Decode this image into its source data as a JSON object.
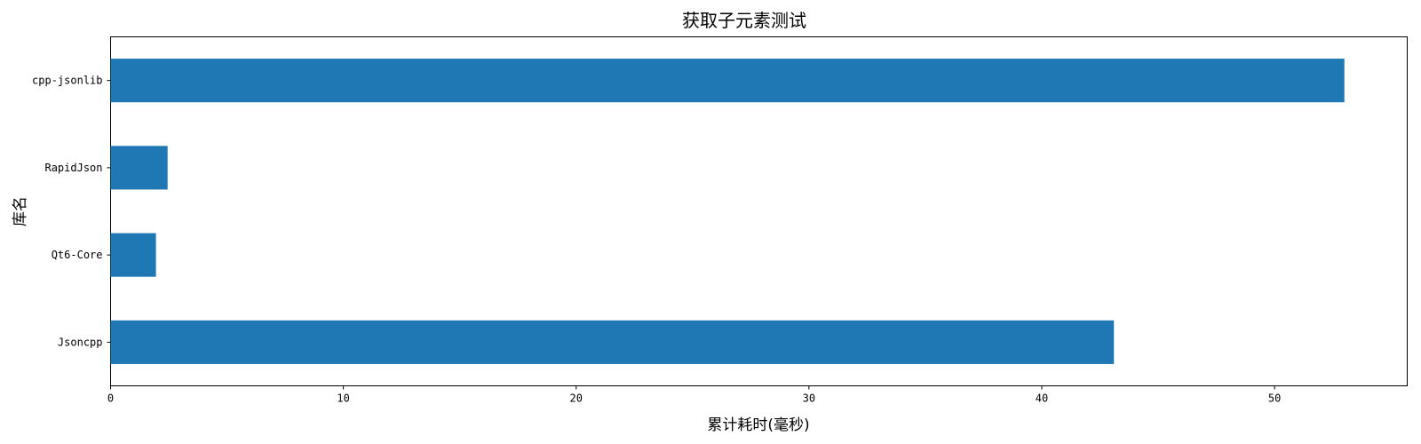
{
  "chart_data": {
    "type": "bar",
    "orientation": "horizontal",
    "title": "获取子元素测试",
    "xlabel": "累计耗时(毫秒)",
    "ylabel": "库名",
    "categories": [
      "Jsoncpp",
      "Qt6-Core",
      "RapidJson",
      "cpp-jsonlib"
    ],
    "values": [
      43.1,
      1.95,
      2.45,
      53.0
    ],
    "xlim": [
      0,
      55.7
    ],
    "xticks": [
      "0",
      "10",
      "20",
      "30",
      "40",
      "50"
    ],
    "bar_color": "#1f77b4",
    "grid": false,
    "legend": "none"
  }
}
